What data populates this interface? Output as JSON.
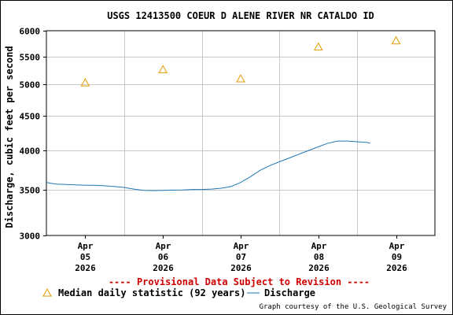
{
  "chart_data": {
    "type": "line",
    "title": "USGS 12413500 COEUR D ALENE RIVER NR CATALDO ID",
    "ylabel": "Discharge, cubic feet per second",
    "y_scale": "log",
    "ylim": [
      3000,
      6000
    ],
    "y_ticks": [
      "3000",
      "3500",
      "4000",
      "4500",
      "5000",
      "5500",
      "6000"
    ],
    "y_tick_values": [
      3000,
      3500,
      4000,
      4500,
      5000,
      5500,
      6000
    ],
    "x_range": [
      "2026-04-04T12:00",
      "2026-04-09T12:00"
    ],
    "x_ticks": [
      {
        "value": "2026-04-05T00:00",
        "month": "Apr",
        "day": "05",
        "year": "2026"
      },
      {
        "value": "2026-04-06T00:00",
        "month": "Apr",
        "day": "06",
        "year": "2026"
      },
      {
        "value": "2026-04-07T00:00",
        "month": "Apr",
        "day": "07",
        "year": "2026"
      },
      {
        "value": "2026-04-08T00:00",
        "month": "Apr",
        "day": "08",
        "year": "2026"
      },
      {
        "value": "2026-04-09T00:00",
        "month": "Apr",
        "day": "09",
        "year": "2026"
      }
    ],
    "grid": true,
    "provisional_note": "---- Provisional Data Subject to Revision ----",
    "credit": "Graph courtesy of the U.S. Geological Survey",
    "colors": {
      "discharge": "#1f77b4",
      "median": "#e69a00",
      "grid": "#c8c8c8",
      "provisional": "#d00000"
    },
    "series": [
      {
        "name": "Median daily statistic (92 years)",
        "kind": "markers",
        "marker": "triangle",
        "points": [
          {
            "x": "2026-04-05T00:00",
            "y": 5030
          },
          {
            "x": "2026-04-06T00:00",
            "y": 5260
          },
          {
            "x": "2026-04-07T00:00",
            "y": 5100
          },
          {
            "x": "2026-04-08T00:00",
            "y": 5680
          },
          {
            "x": "2026-04-09T00:00",
            "y": 5800
          }
        ]
      },
      {
        "name": "Discharge",
        "kind": "line",
        "points": [
          {
            "x": "2026-04-04T12:00",
            "y": 3590
          },
          {
            "x": "2026-04-04T15:00",
            "y": 3570
          },
          {
            "x": "2026-04-04T18:00",
            "y": 3565
          },
          {
            "x": "2026-04-04T21:00",
            "y": 3560
          },
          {
            "x": "2026-04-05T00:00",
            "y": 3555
          },
          {
            "x": "2026-04-05T03:00",
            "y": 3555
          },
          {
            "x": "2026-04-05T06:00",
            "y": 3550
          },
          {
            "x": "2026-04-05T09:00",
            "y": 3540
          },
          {
            "x": "2026-04-05T12:00",
            "y": 3530
          },
          {
            "x": "2026-04-05T15:00",
            "y": 3510
          },
          {
            "x": "2026-04-05T18:00",
            "y": 3495
          },
          {
            "x": "2026-04-05T21:00",
            "y": 3492
          },
          {
            "x": "2026-04-06T00:00",
            "y": 3495
          },
          {
            "x": "2026-04-06T03:00",
            "y": 3498
          },
          {
            "x": "2026-04-06T06:00",
            "y": 3500
          },
          {
            "x": "2026-04-06T09:00",
            "y": 3505
          },
          {
            "x": "2026-04-06T12:00",
            "y": 3505
          },
          {
            "x": "2026-04-06T15:00",
            "y": 3510
          },
          {
            "x": "2026-04-06T18:00",
            "y": 3520
          },
          {
            "x": "2026-04-06T21:00",
            "y": 3540
          },
          {
            "x": "2026-04-07T00:00",
            "y": 3590
          },
          {
            "x": "2026-04-07T03:00",
            "y": 3660
          },
          {
            "x": "2026-04-07T06:00",
            "y": 3740
          },
          {
            "x": "2026-04-07T09:00",
            "y": 3800
          },
          {
            "x": "2026-04-07T12:00",
            "y": 3850
          },
          {
            "x": "2026-04-07T15:00",
            "y": 3900
          },
          {
            "x": "2026-04-07T18:00",
            "y": 3950
          },
          {
            "x": "2026-04-07T21:00",
            "y": 4000
          },
          {
            "x": "2026-04-08T00:00",
            "y": 4050
          },
          {
            "x": "2026-04-08T03:00",
            "y": 4100
          },
          {
            "x": "2026-04-08T06:00",
            "y": 4130
          },
          {
            "x": "2026-04-08T09:00",
            "y": 4130
          },
          {
            "x": "2026-04-08T12:00",
            "y": 4120
          },
          {
            "x": "2026-04-08T15:00",
            "y": 4110
          },
          {
            "x": "2026-04-08T16:00",
            "y": 4100
          }
        ]
      }
    ]
  }
}
